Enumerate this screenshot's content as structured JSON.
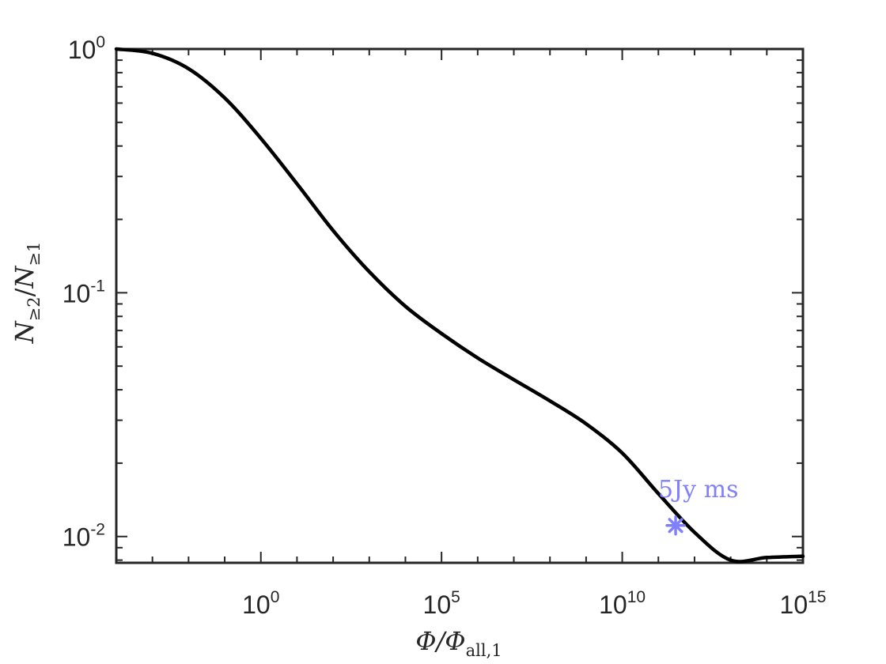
{
  "chart_data": {
    "type": "line",
    "xscale": "log",
    "yscale": "log",
    "xlim": [
      0.0001,
      1000000000000000.0
    ],
    "ylim": [
      0.0078,
      1
    ],
    "xticks": [
      {
        "value": 1,
        "base": "10",
        "exp": "0"
      },
      {
        "value": 100000,
        "base": "10",
        "exp": "5"
      },
      {
        "value": 10000000000,
        "base": "10",
        "exp": "10"
      },
      {
        "value": 1000000000000000,
        "base": "10",
        "exp": "15"
      }
    ],
    "yticks": [
      {
        "value": 1,
        "base": "10",
        "exp": "0"
      },
      {
        "value": 0.1,
        "base": "10",
        "exp": "-1"
      },
      {
        "value": 0.01,
        "base": "10",
        "exp": "-2"
      }
    ],
    "xlabel": {
      "main": "Φ/Φ",
      "sub": "all,1"
    },
    "ylabel": {
      "n1": "N",
      "s1": "≥2",
      "slash": "/",
      "n2": "N",
      "s2": "≥1"
    },
    "grid": false,
    "series": [
      {
        "color": "#000000",
        "x": [
          0.0001,
          0.001,
          0.01,
          0.1,
          1,
          10,
          100,
          1000,
          10000,
          100000,
          1000000.0,
          10000000.0,
          100000000.0,
          1000000000.0,
          10000000000.0,
          100000000000.0,
          1000000000000.0,
          10000000000000.0,
          100000000000000.0,
          1000000000000000.0
        ],
        "y": [
          1.0,
          0.96,
          0.83,
          0.63,
          0.43,
          0.28,
          0.18,
          0.122,
          0.088,
          0.068,
          0.054,
          0.044,
          0.036,
          0.029,
          0.022,
          0.015,
          0.0104,
          0.008,
          0.0082,
          0.0083
        ]
      }
    ],
    "markers": [
      {
        "x": 300000000000.0,
        "y": 0.0111,
        "symbol": "asterisk",
        "color": "#8080ff",
        "label": "5Jy ms"
      }
    ]
  }
}
